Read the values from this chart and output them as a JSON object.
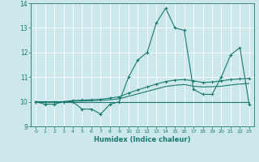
{
  "xlabel": "Humidex (Indice chaleur)",
  "bg_color": "#cce8ec",
  "line_color": "#1a7a6e",
  "grid_color": "#ffffff",
  "xlim": [
    -0.5,
    23.5
  ],
  "ylim": [
    9,
    14
  ],
  "yticks": [
    9,
    10,
    11,
    12,
    13,
    14
  ],
  "xticks": [
    0,
    1,
    2,
    3,
    4,
    5,
    6,
    7,
    8,
    9,
    10,
    11,
    12,
    13,
    14,
    15,
    16,
    17,
    18,
    19,
    20,
    21,
    22,
    23
  ],
  "series1_x": [
    0,
    1,
    2,
    3,
    4,
    5,
    6,
    7,
    8,
    9,
    10,
    11,
    12,
    13,
    14,
    15,
    16,
    17,
    18,
    19,
    20,
    21,
    22,
    23
  ],
  "series1_y": [
    10.0,
    9.9,
    9.9,
    10.0,
    10.0,
    9.7,
    9.7,
    9.5,
    9.9,
    10.0,
    11.0,
    11.7,
    12.0,
    13.2,
    13.8,
    13.0,
    12.9,
    10.5,
    10.3,
    10.3,
    11.0,
    11.9,
    12.2,
    9.9
  ],
  "series2_x": [
    0,
    1,
    2,
    3,
    4,
    5,
    6,
    7,
    8,
    9,
    10,
    11,
    12,
    13,
    14,
    15,
    16,
    17,
    18,
    19,
    20,
    21,
    22,
    23
  ],
  "series2_y": [
    10.0,
    10.0,
    10.0,
    10.0,
    10.0,
    10.0,
    10.0,
    10.0,
    10.0,
    10.0,
    10.0,
    10.0,
    10.0,
    10.0,
    10.0,
    10.0,
    10.0,
    10.0,
    10.0,
    10.0,
    10.0,
    10.0,
    10.0,
    10.0
  ],
  "series3_x": [
    0,
    1,
    2,
    3,
    4,
    5,
    6,
    7,
    8,
    9,
    10,
    11,
    12,
    13,
    14,
    15,
    16,
    17,
    18,
    19,
    20,
    21,
    22,
    23
  ],
  "series3_y": [
    10.0,
    10.0,
    10.0,
    10.0,
    10.05,
    10.07,
    10.08,
    10.1,
    10.15,
    10.2,
    10.35,
    10.48,
    10.6,
    10.72,
    10.82,
    10.88,
    10.9,
    10.85,
    10.78,
    10.8,
    10.85,
    10.9,
    10.93,
    10.95
  ],
  "series4_x": [
    0,
    1,
    2,
    3,
    4,
    5,
    6,
    7,
    8,
    9,
    10,
    11,
    12,
    13,
    14,
    15,
    16,
    17,
    18,
    19,
    20,
    21,
    22,
    23
  ],
  "series4_y": [
    10.0,
    10.0,
    10.0,
    10.0,
    10.02,
    10.03,
    10.04,
    10.06,
    10.08,
    10.12,
    10.22,
    10.32,
    10.42,
    10.52,
    10.62,
    10.67,
    10.7,
    10.63,
    10.6,
    10.61,
    10.63,
    10.68,
    10.72,
    10.74
  ]
}
